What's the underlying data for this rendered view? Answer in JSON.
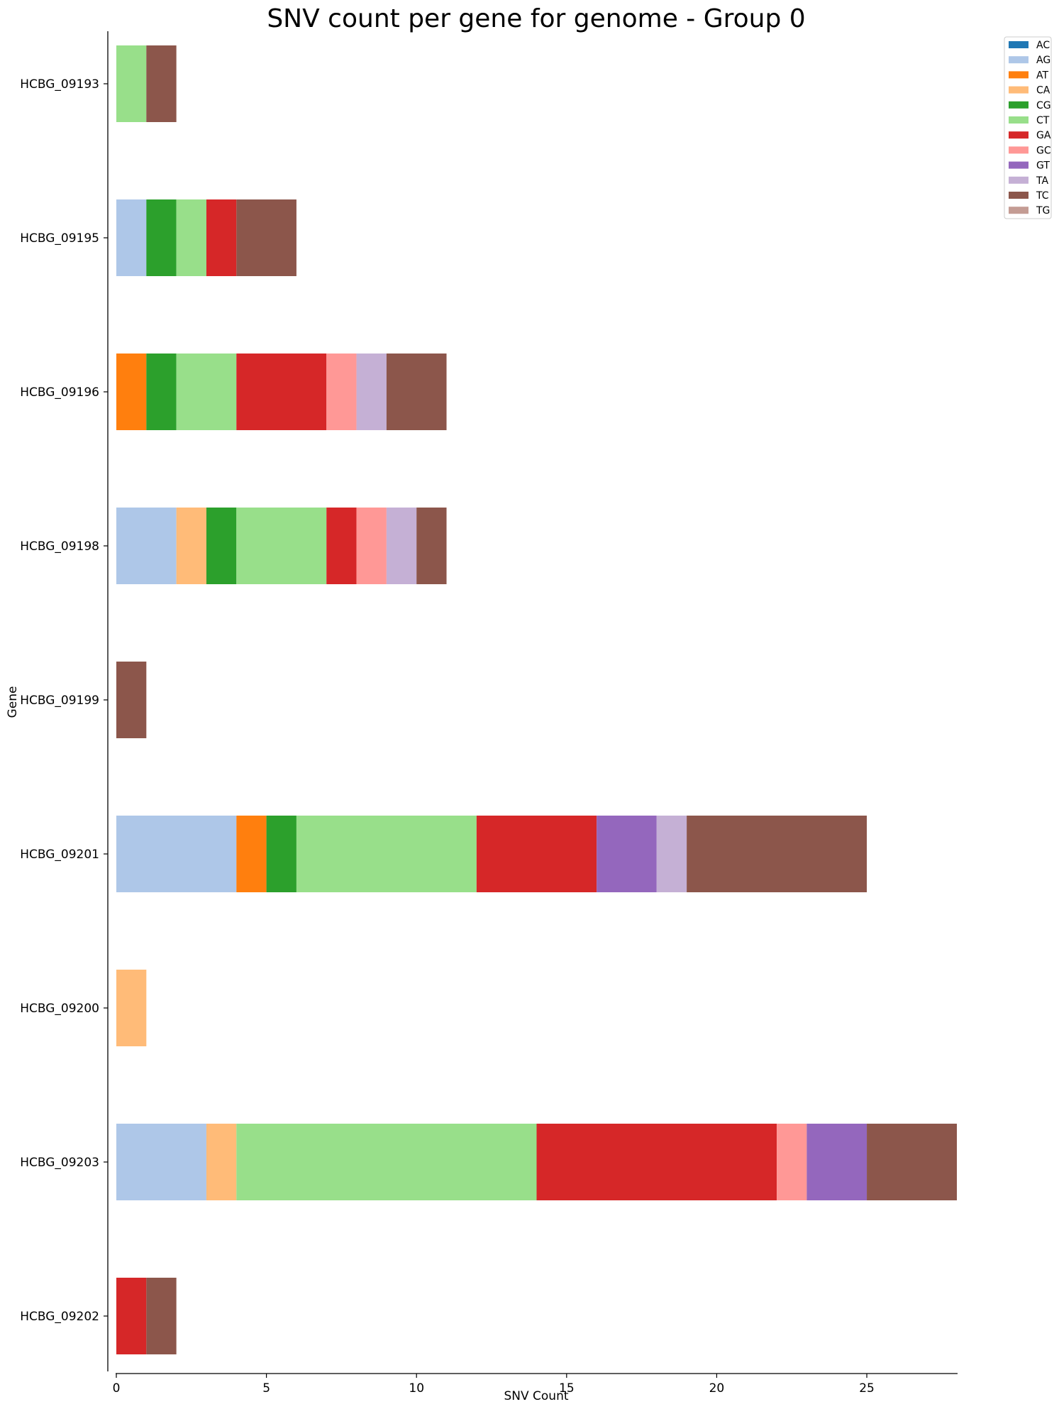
{
  "chart_data": {
    "type": "bar",
    "orientation": "horizontal",
    "stacked": true,
    "title": "SNV count per gene for genome - Group 0",
    "xlabel": "SNV Count",
    "ylabel": "Gene",
    "xlim": [
      0,
      28
    ],
    "x_ticks": [
      0,
      5,
      10,
      15,
      20,
      25
    ],
    "grid": false,
    "legend_position": "top-right, outside plot",
    "categories": [
      "HCBG_09193",
      "HCBG_09195",
      "HCBG_09196",
      "HCBG_09198",
      "HCBG_09199",
      "HCBG_09201",
      "HCBG_09200",
      "HCBG_09203",
      "HCBG_09202"
    ],
    "series": [
      {
        "name": "AC",
        "color": "#1f77b4",
        "values": [
          0,
          0,
          0,
          0,
          0,
          0,
          0,
          0,
          0
        ]
      },
      {
        "name": "AG",
        "color": "#aec7e8",
        "values": [
          0,
          1,
          0,
          2,
          0,
          4,
          0,
          3,
          0
        ]
      },
      {
        "name": "AT",
        "color": "#ff7f0e",
        "values": [
          0,
          0,
          1,
          0,
          0,
          1,
          0,
          0,
          0
        ]
      },
      {
        "name": "CA",
        "color": "#ffbb78",
        "values": [
          0,
          0,
          0,
          1,
          0,
          0,
          1,
          1,
          0
        ]
      },
      {
        "name": "CG",
        "color": "#2ca02c",
        "values": [
          0,
          1,
          1,
          1,
          0,
          1,
          0,
          0,
          0
        ]
      },
      {
        "name": "CT",
        "color": "#98df8a",
        "values": [
          1,
          1,
          2,
          3,
          0,
          6,
          0,
          10,
          0
        ]
      },
      {
        "name": "GA",
        "color": "#d62728",
        "values": [
          0,
          1,
          3,
          1,
          0,
          4,
          0,
          8,
          1
        ]
      },
      {
        "name": "GC",
        "color": "#ff9896",
        "values": [
          0,
          0,
          1,
          1,
          0,
          0,
          0,
          1,
          0
        ]
      },
      {
        "name": "GT",
        "color": "#9467bd",
        "values": [
          0,
          0,
          0,
          0,
          0,
          2,
          0,
          2,
          0
        ]
      },
      {
        "name": "TA",
        "color": "#c5b0d5",
        "values": [
          0,
          0,
          1,
          1,
          0,
          1,
          0,
          0,
          0
        ]
      },
      {
        "name": "TC",
        "color": "#8c564b",
        "values": [
          1,
          2,
          2,
          1,
          1,
          6,
          0,
          3,
          1
        ]
      },
      {
        "name": "TG",
        "color": "#c49c94",
        "values": [
          0,
          0,
          0,
          0,
          0,
          0,
          0,
          0,
          0
        ]
      }
    ]
  }
}
